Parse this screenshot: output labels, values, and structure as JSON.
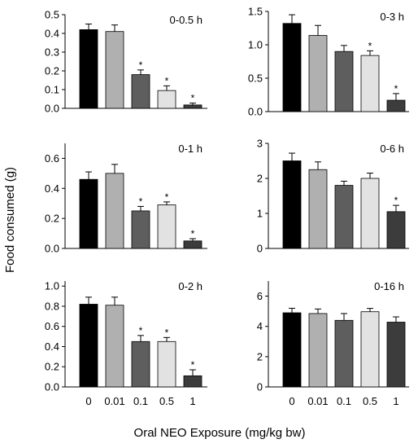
{
  "figure": {
    "ylabel": "Food consumed (g)",
    "xlabel": "Oral NEO Exposure (mg/kg bw)"
  },
  "chart_data": [
    {
      "type": "bar",
      "label": "0-0.5 h",
      "categories": [
        "0",
        "0.01",
        "0.1",
        "0.5",
        "1"
      ],
      "values": [
        0.42,
        0.41,
        0.18,
        0.095,
        0.018
      ],
      "errors": [
        0.03,
        0.035,
        0.025,
        0.025,
        0.01
      ],
      "significant": [
        false,
        false,
        true,
        true,
        true
      ],
      "ylim": [
        0,
        0.5
      ],
      "yticks": [
        "0.0",
        "0.1",
        "0.2",
        "0.3",
        "0.4",
        "0.5"
      ],
      "show_xticks": false
    },
    {
      "type": "bar",
      "label": "0-3 h",
      "categories": [
        "0",
        "0.01",
        "0.1",
        "0.5",
        "1"
      ],
      "values": [
        1.32,
        1.14,
        0.9,
        0.84,
        0.17
      ],
      "errors": [
        0.13,
        0.15,
        0.09,
        0.07,
        0.1
      ],
      "significant": [
        false,
        false,
        false,
        true,
        true
      ],
      "ylim": [
        0,
        1.5
      ],
      "yticks": [
        "0.0",
        "0.5",
        "1.0",
        "1.5"
      ],
      "show_xticks": false
    },
    {
      "type": "bar",
      "label": "0-1 h",
      "categories": [
        "0",
        "0.01",
        "0.1",
        "0.5",
        "1"
      ],
      "values": [
        0.46,
        0.5,
        0.25,
        0.29,
        0.05
      ],
      "errors": [
        0.05,
        0.06,
        0.03,
        0.02,
        0.015
      ],
      "significant": [
        false,
        false,
        true,
        true,
        true
      ],
      "ylim": [
        0,
        0.7
      ],
      "yticks": [
        "0.0",
        "0.2",
        "0.4",
        "0.6"
      ],
      "show_xticks": false
    },
    {
      "type": "bar",
      "label": "0-6 h",
      "categories": [
        "0",
        "0.01",
        "0.1",
        "0.5",
        "1"
      ],
      "values": [
        2.5,
        2.25,
        1.8,
        2.0,
        1.05
      ],
      "errors": [
        0.22,
        0.22,
        0.12,
        0.15,
        0.18
      ],
      "significant": [
        false,
        false,
        false,
        false,
        true
      ],
      "ylim": [
        0,
        3
      ],
      "yticks": [
        "0",
        "1",
        "2",
        "3"
      ],
      "show_xticks": false
    },
    {
      "type": "bar",
      "label": "0-2 h",
      "categories": [
        "0",
        "0.01",
        "0.1",
        "0.5",
        "1"
      ],
      "values": [
        0.82,
        0.81,
        0.45,
        0.45,
        0.11
      ],
      "errors": [
        0.07,
        0.08,
        0.06,
        0.04,
        0.06
      ],
      "significant": [
        false,
        false,
        true,
        true,
        true
      ],
      "ylim": [
        0,
        1.05
      ],
      "yticks": [
        "0.0",
        "0.2",
        "0.4",
        "0.6",
        "0.8",
        "1.0"
      ],
      "show_xticks": true
    },
    {
      "type": "bar",
      "label": "0-16 h",
      "categories": [
        "0",
        "0.01",
        "0.1",
        "0.5",
        "1"
      ],
      "values": [
        4.9,
        4.85,
        4.4,
        4.97,
        4.28
      ],
      "errors": [
        0.3,
        0.3,
        0.45,
        0.22,
        0.35
      ],
      "significant": [
        false,
        false,
        false,
        false,
        false
      ],
      "ylim": [
        0,
        7
      ],
      "yticks": [
        "0",
        "2",
        "4",
        "6"
      ],
      "show_xticks": true
    }
  ],
  "colors": {
    "bars": [
      "#000000",
      "#b0b0b0",
      "#5e5e5e",
      "#e2e2e2",
      "#3c3c3c"
    ],
    "outline": "#000000"
  },
  "significance_marker": "*"
}
